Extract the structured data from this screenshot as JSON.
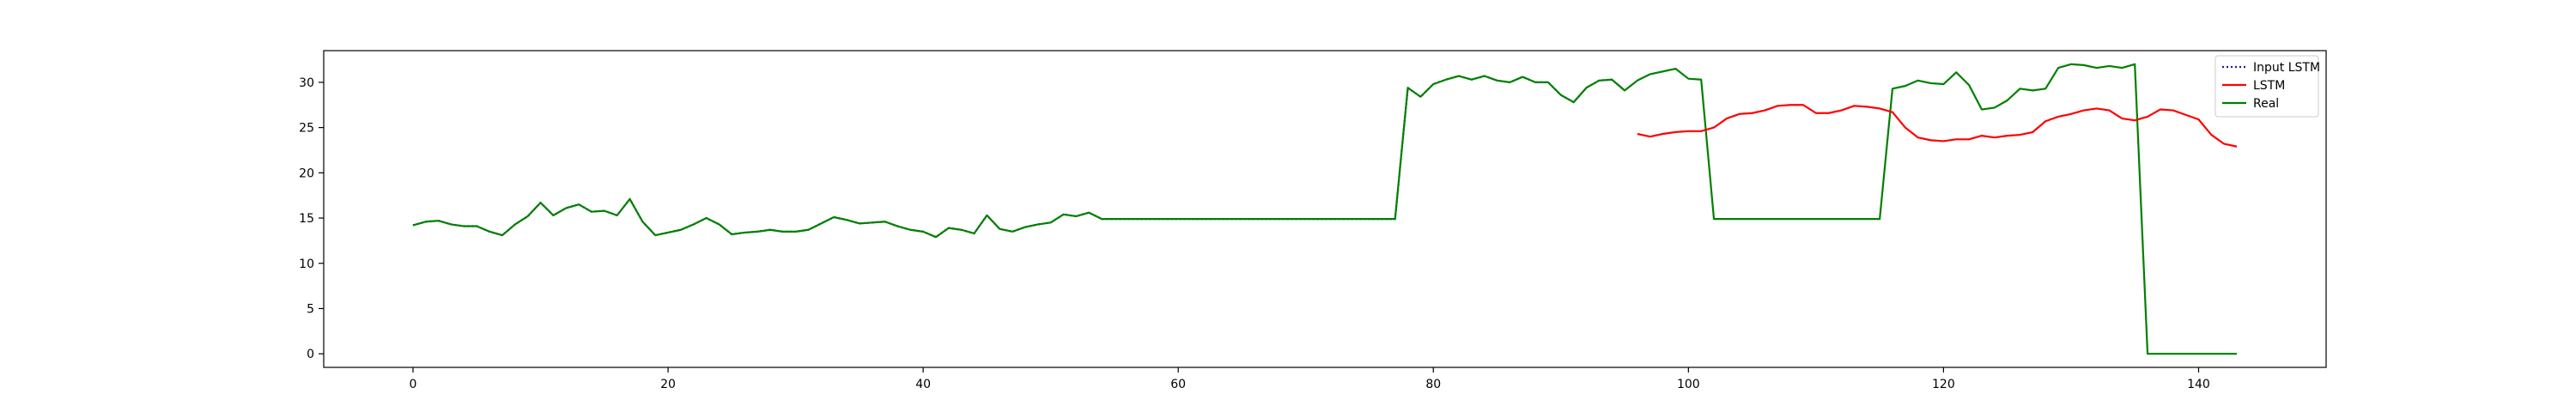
{
  "chart_data": {
    "type": "line",
    "title": "",
    "xlabel": "",
    "ylabel": "",
    "xlim": [
      -7,
      150
    ],
    "ylim": [
      -1.5,
      33.5
    ],
    "xticks": [
      0,
      20,
      40,
      60,
      80,
      100,
      120,
      140
    ],
    "yticks": [
      0,
      5,
      10,
      15,
      20,
      25,
      30
    ],
    "grid": false,
    "legend_position": "top-right",
    "series": [
      {
        "name": "Input LSTM",
        "color": "#1f1f8f",
        "style": "dotted",
        "x": [
          0,
          1,
          2,
          3,
          4,
          5,
          6,
          7,
          8,
          9,
          10,
          11,
          12,
          13,
          14,
          15,
          16,
          17,
          18,
          19,
          20,
          21,
          22,
          23,
          24,
          25,
          26,
          27,
          28,
          29,
          30,
          31,
          32,
          33,
          34,
          35,
          36,
          37,
          38,
          39,
          40,
          41,
          42,
          43,
          44,
          45,
          46,
          47,
          48,
          49,
          50,
          51,
          52,
          53,
          54,
          55,
          56,
          57,
          58,
          59,
          60,
          61,
          62,
          63,
          64,
          65,
          66,
          67,
          68,
          69,
          70,
          71,
          72,
          73,
          74,
          75,
          76,
          77,
          78,
          79,
          80,
          81,
          82,
          83,
          84,
          85,
          86,
          87,
          88,
          89,
          90,
          91,
          92,
          93,
          94,
          95
        ],
        "y": [
          14.2,
          14.6,
          14.7,
          14.3,
          14.1,
          14.1,
          13.5,
          13.1,
          14.3,
          15.2,
          16.7,
          15.3,
          16.1,
          16.5,
          15.7,
          15.8,
          15.3,
          17.1,
          14.6,
          13.1,
          13.4,
          13.7,
          14.3,
          15.0,
          14.3,
          13.2,
          13.4,
          13.5,
          13.7,
          13.5,
          13.5,
          13.7,
          14.4,
          15.1,
          14.8,
          14.4,
          14.5,
          14.6,
          14.1,
          13.7,
          13.5,
          12.9,
          13.9,
          13.7,
          13.3,
          15.3,
          13.8,
          13.5,
          14.0,
          14.3,
          14.5,
          15.4,
          15.2,
          15.6,
          14.9,
          14.9,
          14.9,
          14.9,
          14.9,
          14.9,
          14.9,
          14.9,
          14.9,
          14.9,
          14.9,
          14.9,
          14.9,
          14.9,
          14.9,
          14.9,
          14.9,
          14.9,
          14.9,
          14.9,
          14.9,
          14.9,
          14.9,
          14.9,
          29.4,
          28.4,
          29.8,
          30.3,
          30.7,
          30.3,
          30.7,
          30.2,
          30.0,
          30.6,
          30.0,
          30.0,
          28.6,
          27.8,
          29.4,
          30.2,
          30.3,
          29.1
        ]
      },
      {
        "name": "LSTM",
        "color": "#ff0000",
        "style": "solid",
        "x": [
          96,
          97,
          98,
          99,
          100,
          101,
          102,
          103,
          104,
          105,
          106,
          107,
          108,
          109,
          110,
          111,
          112,
          113,
          114,
          115,
          116,
          117,
          118,
          119,
          120,
          121,
          122,
          123,
          124,
          125,
          126,
          127,
          128,
          129,
          130,
          131,
          132,
          133,
          134,
          135,
          136,
          137,
          138,
          139,
          140,
          141,
          142,
          143
        ],
        "y": [
          24.3,
          24.0,
          24.3,
          24.5,
          24.6,
          24.6,
          25.0,
          26.0,
          26.5,
          26.6,
          26.9,
          27.4,
          27.5,
          27.5,
          26.6,
          26.6,
          26.9,
          27.4,
          27.3,
          27.1,
          26.7,
          25.0,
          23.9,
          23.6,
          23.5,
          23.7,
          23.7,
          24.1,
          23.9,
          24.1,
          24.2,
          24.5,
          25.7,
          26.2,
          26.5,
          26.9,
          27.1,
          26.9,
          26.0,
          25.8,
          26.2,
          27.0,
          26.9,
          26.4,
          25.9,
          24.2,
          23.2,
          22.9
        ]
      },
      {
        "name": "Real",
        "color": "#008000",
        "style": "solid",
        "x": [
          0,
          1,
          2,
          3,
          4,
          5,
          6,
          7,
          8,
          9,
          10,
          11,
          12,
          13,
          14,
          15,
          16,
          17,
          18,
          19,
          20,
          21,
          22,
          23,
          24,
          25,
          26,
          27,
          28,
          29,
          30,
          31,
          32,
          33,
          34,
          35,
          36,
          37,
          38,
          39,
          40,
          41,
          42,
          43,
          44,
          45,
          46,
          47,
          48,
          49,
          50,
          51,
          52,
          53,
          54,
          55,
          56,
          57,
          58,
          59,
          60,
          61,
          62,
          63,
          64,
          65,
          66,
          67,
          68,
          69,
          70,
          71,
          72,
          73,
          74,
          75,
          76,
          77,
          78,
          79,
          80,
          81,
          82,
          83,
          84,
          85,
          86,
          87,
          88,
          89,
          90,
          91,
          92,
          93,
          94,
          95,
          96,
          97,
          98,
          99,
          100,
          101,
          102,
          103,
          104,
          105,
          106,
          107,
          108,
          109,
          110,
          111,
          112,
          113,
          114,
          115,
          116,
          117,
          118,
          119,
          120,
          121,
          122,
          123,
          124,
          125,
          126,
          127,
          128,
          129,
          130,
          131,
          132,
          133,
          134,
          135,
          136,
          137,
          138,
          139,
          140,
          141,
          142,
          143
        ],
        "y": [
          14.2,
          14.6,
          14.7,
          14.3,
          14.1,
          14.1,
          13.5,
          13.1,
          14.3,
          15.2,
          16.7,
          15.3,
          16.1,
          16.5,
          15.7,
          15.8,
          15.3,
          17.1,
          14.6,
          13.1,
          13.4,
          13.7,
          14.3,
          15.0,
          14.3,
          13.2,
          13.4,
          13.5,
          13.7,
          13.5,
          13.5,
          13.7,
          14.4,
          15.1,
          14.8,
          14.4,
          14.5,
          14.6,
          14.1,
          13.7,
          13.5,
          12.9,
          13.9,
          13.7,
          13.3,
          15.3,
          13.8,
          13.5,
          14.0,
          14.3,
          14.5,
          15.4,
          15.2,
          15.6,
          14.9,
          14.9,
          14.9,
          14.9,
          14.9,
          14.9,
          14.9,
          14.9,
          14.9,
          14.9,
          14.9,
          14.9,
          14.9,
          14.9,
          14.9,
          14.9,
          14.9,
          14.9,
          14.9,
          14.9,
          14.9,
          14.9,
          14.9,
          14.9,
          29.4,
          28.4,
          29.8,
          30.3,
          30.7,
          30.3,
          30.7,
          30.2,
          30.0,
          30.6,
          30.0,
          30.0,
          28.6,
          27.8,
          29.4,
          30.2,
          30.3,
          29.1,
          30.2,
          30.9,
          31.2,
          31.5,
          30.4,
          30.3,
          14.9,
          14.9,
          14.9,
          14.9,
          14.9,
          14.9,
          14.9,
          14.9,
          14.9,
          14.9,
          14.9,
          14.9,
          14.9,
          14.9,
          29.3,
          29.6,
          30.2,
          29.9,
          29.8,
          31.1,
          29.7,
          27.0,
          27.2,
          28.0,
          29.3,
          29.1,
          29.3,
          31.6,
          32.0,
          31.9,
          31.6,
          31.8,
          31.6,
          32.0,
          0.0,
          0.0,
          0.0,
          0.0,
          0.0,
          0.0,
          0.0,
          0.0
        ]
      }
    ]
  }
}
